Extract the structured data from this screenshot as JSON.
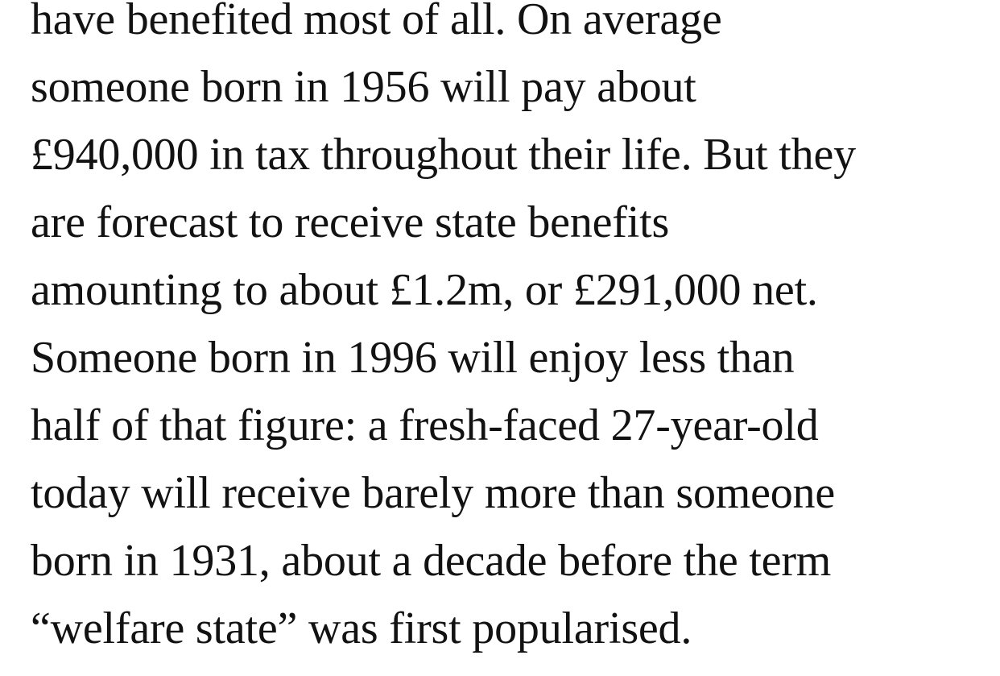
{
  "article": {
    "paragraph_lines": [
      "have benefited most of all. On average",
      "someone born in 1956 will pay about",
      "£940,000 in tax throughout their life. But they",
      "are forecast to receive state benefits",
      "amounting to about £1.2m, or £291,000 net.",
      "Someone born in 1996 will enjoy less than",
      "half of that figure: a fresh-faced 27-year-old",
      "today will receive barely more than someone",
      "born in 1931, about a decade before the term",
      "“welfare state” was first popularised."
    ],
    "text_color": "#121212",
    "background_color": "#ffffff"
  }
}
